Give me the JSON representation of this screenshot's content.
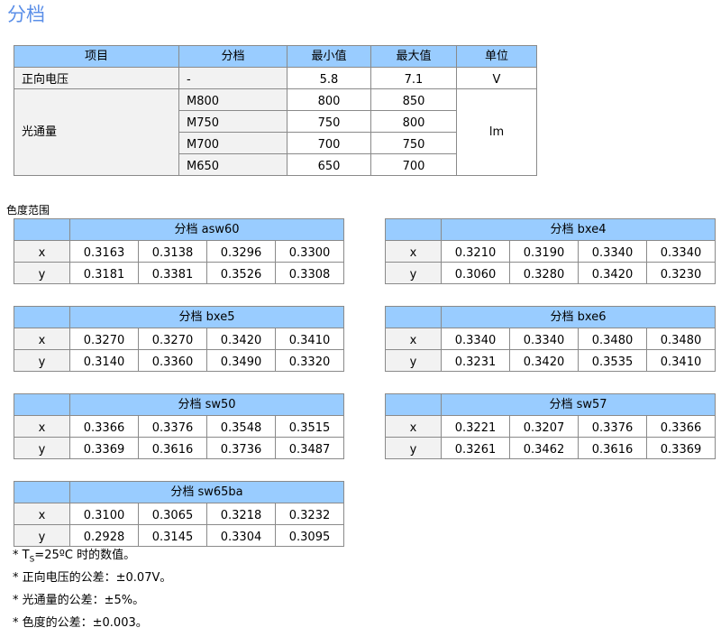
{
  "title": "分档",
  "main_table": {
    "headers": [
      "项目",
      "分档",
      "最小值",
      "最大值",
      "单位"
    ],
    "forward_voltage": {
      "label": "正向电压",
      "bin": "-",
      "min": "5.8",
      "max": "7.1",
      "unit": "V"
    },
    "luminous_flux": {
      "label": "光通量",
      "unit": "lm",
      "rows": [
        {
          "bin": "M800",
          "min": "800",
          "max": "850"
        },
        {
          "bin": "M750",
          "min": "750",
          "max": "800"
        },
        {
          "bin": "M700",
          "min": "700",
          "max": "750"
        },
        {
          "bin": "M650",
          "min": "650",
          "max": "700"
        }
      ]
    }
  },
  "chroma_title": "色度范围",
  "chroma_tables": [
    {
      "title": "分档 asw60",
      "x": [
        "0.3163",
        "0.3138",
        "0.3296",
        "0.3300"
      ],
      "y": [
        "0.3181",
        "0.3381",
        "0.3526",
        "0.3308"
      ]
    },
    {
      "title": "分档 bxe4",
      "x": [
        "0.3210",
        "0.3190",
        "0.3340",
        "0.3340"
      ],
      "y": [
        "0.3060",
        "0.3280",
        "0.3420",
        "0.3230"
      ]
    },
    {
      "title": "分档 bxe5",
      "x": [
        "0.3270",
        "0.3270",
        "0.3420",
        "0.3410"
      ],
      "y": [
        "0.3140",
        "0.3360",
        "0.3490",
        "0.3320"
      ]
    },
    {
      "title": "分档 bxe6",
      "x": [
        "0.3340",
        "0.3340",
        "0.3480",
        "0.3480"
      ],
      "y": [
        "0.3231",
        "0.3420",
        "0.3535",
        "0.3410"
      ]
    },
    {
      "title": "分档 sw50",
      "x": [
        "0.3366",
        "0.3376",
        "0.3548",
        "0.3515"
      ],
      "y": [
        "0.3369",
        "0.3616",
        "0.3736",
        "0.3487"
      ]
    },
    {
      "title": "分档 sw57",
      "x": [
        "0.3221",
        "0.3207",
        "0.3376",
        "0.3366"
      ],
      "y": [
        "0.3261",
        "0.3462",
        "0.3616",
        "0.3369"
      ]
    },
    {
      "title": "分档 sw65ba",
      "x": [
        "0.3100",
        "0.3065",
        "0.3218",
        "0.3232"
      ],
      "y": [
        "0.2928",
        "0.3145",
        "0.3304",
        "0.3095"
      ]
    }
  ],
  "row_labels": {
    "x": "x",
    "y": "y"
  },
  "notes": {
    "n1_prefix": "* T",
    "n1_sub": "S",
    "n1_rest": "=25ºC 时的数值。",
    "n2": "*  正向电压的公差：±0.07V。",
    "n3": "*  光通量的公差：±5%。",
    "n4": "*  色度的公差：±0.003。"
  }
}
